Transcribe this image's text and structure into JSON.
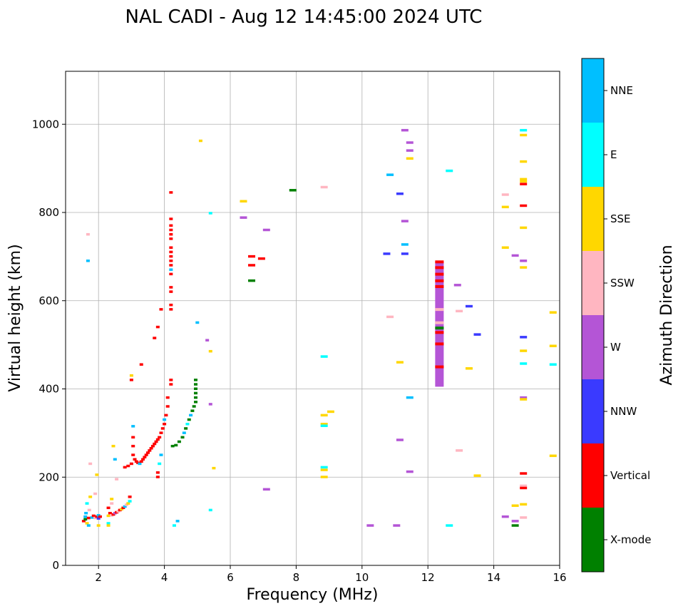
{
  "chart_data": {
    "type": "scatter",
    "title": "NAL CADI - Aug 12 14:45:00 2024 UTC",
    "xlabel": "Frequency (MHz)",
    "ylabel": "Virtual height (km)",
    "xlim": [
      1,
      16
    ],
    "ylim": [
      0,
      1120
    ],
    "xticks": [
      2,
      4,
      6,
      8,
      10,
      12,
      14,
      16
    ],
    "yticks": [
      0,
      200,
      400,
      600,
      800,
      1000
    ],
    "grid": true,
    "colorbar": {
      "label": "Azimuth Direction",
      "categories": [
        {
          "name": "X-mode",
          "color": "#008000"
        },
        {
          "name": "Vertical",
          "color": "#ff0000"
        },
        {
          "name": "NNW",
          "color": "#3a3aff"
        },
        {
          "name": "W",
          "color": "#b455d6"
        },
        {
          "name": "SSW",
          "color": "#ffb6c1"
        },
        {
          "name": "SSE",
          "color": "#ffd700"
        },
        {
          "name": "E",
          "color": "#00ffff"
        },
        {
          "name": "NNE",
          "color": "#00bfff"
        }
      ]
    },
    "points": [
      {
        "f": 1.55,
        "h": 100,
        "c": "Vertical"
      },
      {
        "f": 1.6,
        "h": 104,
        "c": "X-mode"
      },
      {
        "f": 1.6,
        "h": 110,
        "c": "NNE"
      },
      {
        "f": 1.62,
        "h": 118,
        "c": "NNE"
      },
      {
        "f": 1.65,
        "h": 95,
        "c": "SSE"
      },
      {
        "f": 1.7,
        "h": 90,
        "c": "NNE"
      },
      {
        "f": 1.7,
        "h": 107,
        "c": "Vertical"
      },
      {
        "f": 1.72,
        "h": 125,
        "c": "SSW"
      },
      {
        "f": 1.75,
        "h": 155,
        "c": "SSE"
      },
      {
        "f": 1.65,
        "h": 140,
        "c": "E"
      },
      {
        "f": 1.8,
        "h": 108,
        "c": "NNE"
      },
      {
        "f": 1.85,
        "h": 112,
        "c": "Vertical"
      },
      {
        "f": 1.9,
        "h": 107,
        "c": "SSW"
      },
      {
        "f": 1.95,
        "h": 110,
        "c": "Vertical"
      },
      {
        "f": 2.0,
        "h": 106,
        "c": "NNW"
      },
      {
        "f": 2.0,
        "h": 113,
        "c": "NNE"
      },
      {
        "f": 2.05,
        "h": 110,
        "c": "Vertical"
      },
      {
        "f": 2.0,
        "h": 90,
        "c": "SSE"
      },
      {
        "f": 1.75,
        "h": 230,
        "c": "SSW"
      },
      {
        "f": 1.95,
        "h": 205,
        "c": "SSE"
      },
      {
        "f": 1.9,
        "h": 162,
        "c": "SSW"
      },
      {
        "f": 1.68,
        "h": 690,
        "c": "NNE"
      },
      {
        "f": 1.68,
        "h": 750,
        "c": "SSW"
      },
      {
        "f": 2.3,
        "h": 112,
        "c": "SSE"
      },
      {
        "f": 2.35,
        "h": 118,
        "c": "Vertical"
      },
      {
        "f": 2.3,
        "h": 130,
        "c": "Vertical"
      },
      {
        "f": 2.3,
        "h": 95,
        "c": "E"
      },
      {
        "f": 2.3,
        "h": 90,
        "c": "SSE"
      },
      {
        "f": 2.4,
        "h": 113,
        "c": "SSW"
      },
      {
        "f": 2.4,
        "h": 140,
        "c": "SSW"
      },
      {
        "f": 2.4,
        "h": 150,
        "c": "SSE"
      },
      {
        "f": 2.45,
        "h": 115,
        "c": "Vertical"
      },
      {
        "f": 2.5,
        "h": 118,
        "c": "W"
      },
      {
        "f": 2.55,
        "h": 120,
        "c": "Vertical"
      },
      {
        "f": 2.6,
        "h": 122,
        "c": "SSW"
      },
      {
        "f": 2.65,
        "h": 125,
        "c": "Vertical"
      },
      {
        "f": 2.7,
        "h": 127,
        "c": "SSE"
      },
      {
        "f": 2.75,
        "h": 130,
        "c": "Vertical"
      },
      {
        "f": 2.8,
        "h": 133,
        "c": "NNE"
      },
      {
        "f": 2.85,
        "h": 137,
        "c": "SSW"
      },
      {
        "f": 2.9,
        "h": 140,
        "c": "SSE"
      },
      {
        "f": 2.95,
        "h": 145,
        "c": "E"
      },
      {
        "f": 2.95,
        "h": 155,
        "c": "Vertical"
      },
      {
        "f": 2.5,
        "h": 240,
        "c": "NNE"
      },
      {
        "f": 2.45,
        "h": 270,
        "c": "SSE"
      },
      {
        "f": 2.55,
        "h": 195,
        "c": "SSW"
      },
      {
        "f": 2.8,
        "h": 222,
        "c": "Vertical"
      },
      {
        "f": 2.9,
        "h": 225,
        "c": "Vertical"
      },
      {
        "f": 3.0,
        "h": 230,
        "c": "Vertical"
      },
      {
        "f": 3.05,
        "h": 250,
        "c": "Vertical"
      },
      {
        "f": 3.05,
        "h": 270,
        "c": "Vertical"
      },
      {
        "f": 3.05,
        "h": 290,
        "c": "Vertical"
      },
      {
        "f": 3.05,
        "h": 315,
        "c": "NNE"
      },
      {
        "f": 3.1,
        "h": 240,
        "c": "Vertical"
      },
      {
        "f": 3.15,
        "h": 235,
        "c": "Vertical"
      },
      {
        "f": 3.2,
        "h": 232,
        "c": "Vertical"
      },
      {
        "f": 3.25,
        "h": 230,
        "c": "NNE"
      },
      {
        "f": 3.3,
        "h": 235,
        "c": "Vertical"
      },
      {
        "f": 3.35,
        "h": 240,
        "c": "Vertical"
      },
      {
        "f": 3.4,
        "h": 245,
        "c": "Vertical"
      },
      {
        "f": 3.45,
        "h": 250,
        "c": "Vertical"
      },
      {
        "f": 3.5,
        "h": 255,
        "c": "Vertical"
      },
      {
        "f": 3.55,
        "h": 260,
        "c": "Vertical"
      },
      {
        "f": 3.6,
        "h": 265,
        "c": "Vertical"
      },
      {
        "f": 3.65,
        "h": 270,
        "c": "Vertical"
      },
      {
        "f": 3.7,
        "h": 275,
        "c": "Vertical"
      },
      {
        "f": 3.75,
        "h": 280,
        "c": "Vertical"
      },
      {
        "f": 3.8,
        "h": 285,
        "c": "Vertical"
      },
      {
        "f": 3.85,
        "h": 290,
        "c": "Vertical"
      },
      {
        "f": 3.9,
        "h": 300,
        "c": "Vertical"
      },
      {
        "f": 3.95,
        "h": 310,
        "c": "Vertical"
      },
      {
        "f": 4.0,
        "h": 320,
        "c": "Vertical"
      },
      {
        "f": 4.05,
        "h": 340,
        "c": "Vertical"
      },
      {
        "f": 4.1,
        "h": 360,
        "c": "Vertical"
      },
      {
        "f": 4.1,
        "h": 380,
        "c": "Vertical"
      },
      {
        "f": 4.0,
        "h": 330,
        "c": "NNE"
      },
      {
        "f": 3.85,
        "h": 230,
        "c": "E"
      },
      {
        "f": 3.8,
        "h": 210,
        "c": "Vertical"
      },
      {
        "f": 3.8,
        "h": 200,
        "c": "Vertical"
      },
      {
        "f": 3.9,
        "h": 250,
        "c": "NNE"
      },
      {
        "f": 3.0,
        "h": 420,
        "c": "Vertical"
      },
      {
        "f": 3.0,
        "h": 430,
        "c": "SSE"
      },
      {
        "f": 3.3,
        "h": 455,
        "c": "Vertical"
      },
      {
        "f": 3.7,
        "h": 515,
        "c": "Vertical"
      },
      {
        "f": 3.8,
        "h": 540,
        "c": "Vertical"
      },
      {
        "f": 3.9,
        "h": 580,
        "c": "Vertical"
      },
      {
        "f": 4.25,
        "h": 270,
        "c": "X-mode"
      },
      {
        "f": 4.35,
        "h": 272,
        "c": "X-mode"
      },
      {
        "f": 4.45,
        "h": 280,
        "c": "X-mode"
      },
      {
        "f": 4.55,
        "h": 290,
        "c": "X-mode"
      },
      {
        "f": 4.6,
        "h": 300,
        "c": "NNE"
      },
      {
        "f": 4.65,
        "h": 310,
        "c": "X-mode"
      },
      {
        "f": 4.7,
        "h": 320,
        "c": "E"
      },
      {
        "f": 4.75,
        "h": 330,
        "c": "X-mode"
      },
      {
        "f": 4.8,
        "h": 340,
        "c": "NNE"
      },
      {
        "f": 4.85,
        "h": 350,
        "c": "X-mode"
      },
      {
        "f": 4.9,
        "h": 360,
        "c": "X-mode"
      },
      {
        "f": 4.95,
        "h": 370,
        "c": "X-mode"
      },
      {
        "f": 4.95,
        "h": 380,
        "c": "X-mode"
      },
      {
        "f": 4.95,
        "h": 390,
        "c": "X-mode"
      },
      {
        "f": 4.95,
        "h": 400,
        "c": "X-mode"
      },
      {
        "f": 4.95,
        "h": 410,
        "c": "X-mode"
      },
      {
        "f": 4.95,
        "h": 420,
        "c": "X-mode"
      },
      {
        "f": 5.0,
        "h": 550,
        "c": "NNE"
      },
      {
        "f": 4.3,
        "h": 90,
        "c": "E"
      },
      {
        "f": 4.4,
        "h": 100,
        "c": "NNE"
      },
      {
        "f": 4.2,
        "h": 410,
        "c": "Vertical"
      },
      {
        "f": 4.2,
        "h": 420,
        "c": "Vertical"
      },
      {
        "f": 4.2,
        "h": 580,
        "c": "Vertical"
      },
      {
        "f": 4.2,
        "h": 590,
        "c": "Vertical"
      },
      {
        "f": 4.2,
        "h": 620,
        "c": "Vertical"
      },
      {
        "f": 4.2,
        "h": 630,
        "c": "Vertical"
      },
      {
        "f": 4.2,
        "h": 660,
        "c": "Vertical"
      },
      {
        "f": 4.2,
        "h": 670,
        "c": "NNE"
      },
      {
        "f": 4.2,
        "h": 680,
        "c": "Vertical"
      },
      {
        "f": 4.2,
        "h": 690,
        "c": "Vertical"
      },
      {
        "f": 4.2,
        "h": 700,
        "c": "Vertical"
      },
      {
        "f": 4.2,
        "h": 710,
        "c": "Vertical"
      },
      {
        "f": 4.2,
        "h": 720,
        "c": "Vertical"
      },
      {
        "f": 4.2,
        "h": 740,
        "c": "Vertical"
      },
      {
        "f": 4.2,
        "h": 750,
        "c": "Vertical"
      },
      {
        "f": 4.2,
        "h": 760,
        "c": "Vertical"
      },
      {
        "f": 4.2,
        "h": 770,
        "c": "Vertical"
      },
      {
        "f": 4.2,
        "h": 785,
        "c": "Vertical"
      },
      {
        "f": 4.2,
        "h": 845,
        "c": "Vertical"
      },
      {
        "f": 5.4,
        "h": 125,
        "c": "E"
      },
      {
        "f": 5.5,
        "h": 220,
        "c": "SSE"
      },
      {
        "f": 5.4,
        "h": 365,
        "c": "W"
      },
      {
        "f": 5.4,
        "h": 485,
        "c": "SSE"
      },
      {
        "f": 5.3,
        "h": 510,
        "c": "W"
      },
      {
        "f": 5.1,
        "h": 962,
        "c": "SSE"
      },
      {
        "f": 5.4,
        "h": 798,
        "c": "E"
      },
      {
        "f": 6.4,
        "h": 825,
        "c": "SSE"
      },
      {
        "f": 6.4,
        "h": 788,
        "c": "W"
      },
      {
        "f": 6.65,
        "h": 700,
        "c": "Vertical"
      },
      {
        "f": 6.65,
        "h": 680,
        "c": "Vertical"
      },
      {
        "f": 6.65,
        "h": 645,
        "c": "X-mode"
      },
      {
        "f": 6.95,
        "h": 695,
        "c": "Vertical"
      },
      {
        "f": 7.1,
        "h": 760,
        "c": "W"
      },
      {
        "f": 7.1,
        "h": 172,
        "c": "W"
      },
      {
        "f": 7.9,
        "h": 850,
        "c": "X-mode"
      },
      {
        "f": 8.85,
        "h": 857,
        "c": "SSW"
      },
      {
        "f": 8.85,
        "h": 473,
        "c": "E"
      },
      {
        "f": 8.85,
        "h": 340,
        "c": "SSE"
      },
      {
        "f": 9.05,
        "h": 348,
        "c": "SSE"
      },
      {
        "f": 8.85,
        "h": 320,
        "c": "SSE"
      },
      {
        "f": 8.85,
        "h": 316,
        "c": "E"
      },
      {
        "f": 8.85,
        "h": 222,
        "c": "E"
      },
      {
        "f": 8.85,
        "h": 216,
        "c": "SSE"
      },
      {
        "f": 8.85,
        "h": 200,
        "c": "SSE"
      },
      {
        "f": 10.25,
        "h": 90,
        "c": "W"
      },
      {
        "f": 10.75,
        "h": 706,
        "c": "NNW"
      },
      {
        "f": 10.85,
        "h": 885,
        "c": "NNE"
      },
      {
        "f": 10.85,
        "h": 563,
        "c": "SSW"
      },
      {
        "f": 11.05,
        "h": 90,
        "c": "W"
      },
      {
        "f": 11.15,
        "h": 842,
        "c": "NNW"
      },
      {
        "f": 11.15,
        "h": 460,
        "c": "SSE"
      },
      {
        "f": 11.15,
        "h": 284,
        "c": "W"
      },
      {
        "f": 11.3,
        "h": 986,
        "c": "W"
      },
      {
        "f": 11.3,
        "h": 780,
        "c": "W"
      },
      {
        "f": 11.3,
        "h": 727,
        "c": "NNE"
      },
      {
        "f": 11.3,
        "h": 706,
        "c": "NNW"
      },
      {
        "f": 11.45,
        "h": 958,
        "c": "W"
      },
      {
        "f": 11.45,
        "h": 940,
        "c": "W"
      },
      {
        "f": 11.45,
        "h": 922,
        "c": "SSE"
      },
      {
        "f": 11.45,
        "h": 380,
        "c": "NNE"
      },
      {
        "f": 11.45,
        "h": 212,
        "c": "W"
      },
      {
        "f": 12.65,
        "h": 894,
        "c": "E"
      },
      {
        "f": 12.65,
        "h": 90,
        "c": "E"
      },
      {
        "f": 12.9,
        "h": 635,
        "c": "W"
      },
      {
        "f": 12.95,
        "h": 576,
        "c": "SSW"
      },
      {
        "f": 12.95,
        "h": 260,
        "c": "SSW"
      },
      {
        "f": 13.25,
        "h": 587,
        "c": "NNW"
      },
      {
        "f": 13.25,
        "h": 446,
        "c": "SSE"
      },
      {
        "f": 13.5,
        "h": 523,
        "c": "NNW"
      },
      {
        "f": 13.5,
        "h": 203,
        "c": "SSE"
      },
      {
        "f": 14.35,
        "h": 840,
        "c": "SSW"
      },
      {
        "f": 14.35,
        "h": 812,
        "c": "SSE"
      },
      {
        "f": 14.35,
        "h": 720,
        "c": "SSE"
      },
      {
        "f": 14.35,
        "h": 110,
        "c": "W"
      },
      {
        "f": 14.65,
        "h": 702,
        "c": "W"
      },
      {
        "f": 14.65,
        "h": 135,
        "c": "SSE"
      },
      {
        "f": 14.65,
        "h": 100,
        "c": "W"
      },
      {
        "f": 14.65,
        "h": 90,
        "c": "X-mode"
      },
      {
        "f": 14.9,
        "h": 986,
        "c": "E"
      },
      {
        "f": 14.9,
        "h": 975,
        "c": "SSE"
      },
      {
        "f": 14.9,
        "h": 915,
        "c": "SSE"
      },
      {
        "f": 14.9,
        "h": 875,
        "c": "SSE"
      },
      {
        "f": 14.9,
        "h": 870,
        "c": "SSE"
      },
      {
        "f": 14.9,
        "h": 864,
        "c": "Vertical"
      },
      {
        "f": 14.9,
        "h": 815,
        "c": "Vertical"
      },
      {
        "f": 14.9,
        "h": 765,
        "c": "SSE"
      },
      {
        "f": 14.9,
        "h": 690,
        "c": "W"
      },
      {
        "f": 14.9,
        "h": 675,
        "c": "SSE"
      },
      {
        "f": 14.9,
        "h": 517,
        "c": "NNW"
      },
      {
        "f": 14.9,
        "h": 486,
        "c": "SSE"
      },
      {
        "f": 14.9,
        "h": 457,
        "c": "E"
      },
      {
        "f": 14.9,
        "h": 380,
        "c": "W"
      },
      {
        "f": 14.9,
        "h": 376,
        "c": "SSE"
      },
      {
        "f": 14.9,
        "h": 208,
        "c": "Vertical"
      },
      {
        "f": 14.9,
        "h": 180,
        "c": "SSW"
      },
      {
        "f": 14.9,
        "h": 175,
        "c": "Vertical"
      },
      {
        "f": 14.9,
        "h": 138,
        "c": "SSE"
      },
      {
        "f": 14.9,
        "h": 108,
        "c": "SSW"
      },
      {
        "f": 15.8,
        "h": 573,
        "c": "SSE"
      },
      {
        "f": 15.8,
        "h": 497,
        "c": "SSE"
      },
      {
        "f": 15.8,
        "h": 455,
        "c": "E"
      },
      {
        "f": 15.8,
        "h": 248,
        "c": "SSE"
      }
    ],
    "bars": [
      {
        "f": 12.35,
        "h0": 405,
        "h1": 688,
        "c": "W"
      }
    ],
    "bar_marks": [
      {
        "f": 12.35,
        "h": 688,
        "c": "Vertical"
      },
      {
        "f": 12.35,
        "h": 675,
        "c": "Vertical"
      },
      {
        "f": 12.35,
        "h": 660,
        "c": "Vertical"
      },
      {
        "f": 12.35,
        "h": 645,
        "c": "Vertical"
      },
      {
        "f": 12.35,
        "h": 632,
        "c": "Vertical"
      },
      {
        "f": 12.35,
        "h": 580,
        "c": "SSW"
      },
      {
        "f": 12.35,
        "h": 550,
        "c": "SSW"
      },
      {
        "f": 12.35,
        "h": 538,
        "c": "X-mode"
      },
      {
        "f": 12.35,
        "h": 528,
        "c": "Vertical"
      },
      {
        "f": 12.35,
        "h": 502,
        "c": "Vertical"
      },
      {
        "f": 12.35,
        "h": 450,
        "c": "Vertical"
      }
    ]
  }
}
